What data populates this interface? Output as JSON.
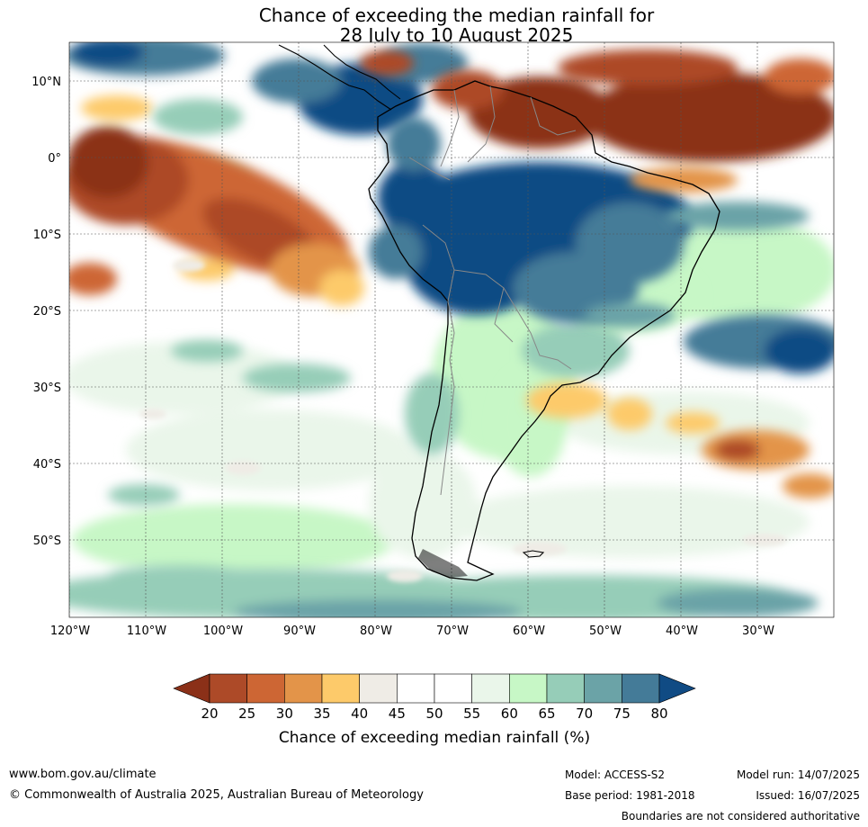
{
  "title": {
    "line1": "Chance of exceeding the median rainfall for",
    "line2": "28 July to 10 August 2025"
  },
  "map": {
    "region": "South America and surrounding oceans",
    "lat_labels": [
      "10°N",
      "0°",
      "10°S",
      "20°S",
      "30°S",
      "40°S",
      "50°S"
    ],
    "lon_labels": [
      "120°W",
      "110°W",
      "100°W",
      "90°W",
      "80°W",
      "70°W",
      "60°W",
      "50°W",
      "40°W",
      "30°W"
    ],
    "gridlines": true
  },
  "colorbar": {
    "ticks": [
      "20",
      "25",
      "30",
      "35",
      "40",
      "45",
      "50",
      "55",
      "60",
      "65",
      "70",
      "75",
      "80"
    ],
    "colors": [
      "#8b3018",
      "#ad4a28",
      "#cd6634",
      "#e39449",
      "#fdca6a",
      "#efece6",
      "#ffffff",
      "#ffffff",
      "#eaf6ea",
      "#c7f7c6",
      "#96cdb8",
      "#6ba3a7",
      "#447b98",
      "#104b84"
    ],
    "label": "Chance of exceeding median rainfall (%)"
  },
  "footer": {
    "website": "www.bom.gov.au/climate",
    "copyright": "© Commonwealth of Australia 2025, Australian Bureau of Meteorology",
    "model": "Model: ACCESS-S2",
    "base_period": "Base period: 1981-2018",
    "model_run": "Model run: 14/07/2025",
    "issued": "Issued: 16/07/2025",
    "disclaimer": "Boundaries are not considered authoritative"
  }
}
